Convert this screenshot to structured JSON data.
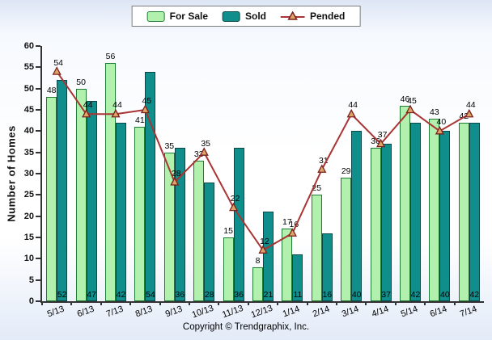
{
  "chart_data": {
    "type": "bar",
    "categories": [
      "5/13",
      "6/13",
      "7/13",
      "8/13",
      "9/13",
      "10/13",
      "11/13",
      "12/13",
      "1/14",
      "2/14",
      "3/14",
      "4/14",
      "5/14",
      "6/14",
      "7/14"
    ],
    "series": [
      {
        "name": "For Sale",
        "type": "bar",
        "color": "#b2f0ad",
        "border": "#1f7a33",
        "values": [
          48,
          50,
          56,
          41,
          35,
          33,
          15,
          8,
          17,
          25,
          29,
          36,
          46,
          43,
          42
        ]
      },
      {
        "name": "Sold",
        "type": "bar",
        "color": "#0f8e8c",
        "border": "#0a4746",
        "values": [
          52,
          47,
          42,
          54,
          36,
          28,
          36,
          21,
          11,
          16,
          40,
          37,
          42,
          40,
          42
        ]
      },
      {
        "name": "Pended",
        "type": "line",
        "color": "#a93434",
        "marker_fill": "#dba665",
        "marker_stroke": "#7c1f1f",
        "values": [
          54,
          44,
          44,
          45,
          28,
          35,
          22,
          12,
          16,
          31,
          44,
          37,
          45,
          40,
          44
        ]
      }
    ],
    "title": "",
    "xlabel": "",
    "ylabel": "Number of Homes",
    "ylim": [
      0,
      60
    ],
    "ytick_step": 5,
    "grid": false,
    "legend_position": "top"
  },
  "footer": {
    "copyright": "Copyright © Trendgraphix, Inc."
  }
}
